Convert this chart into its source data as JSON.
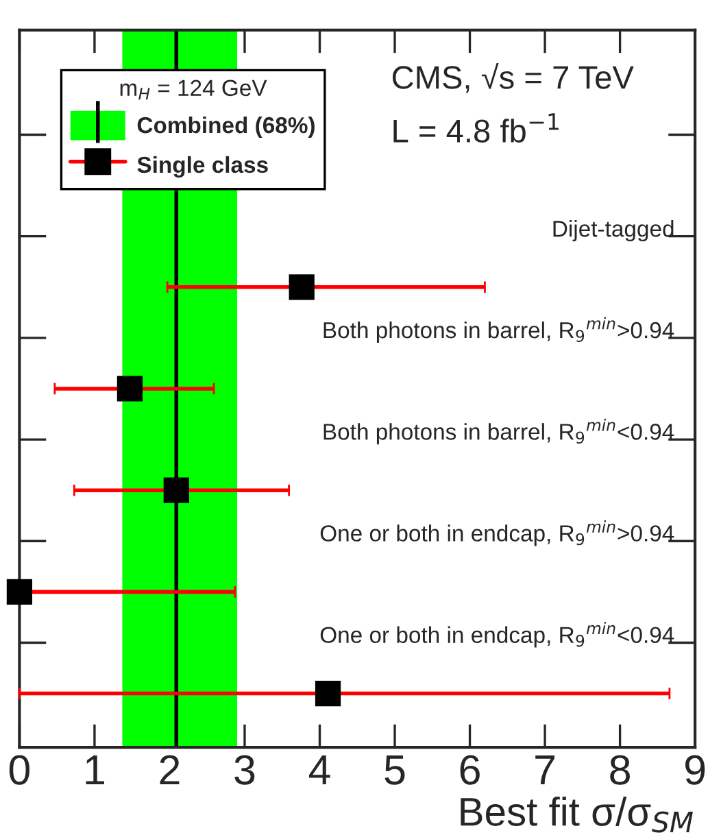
{
  "chart_data": {
    "type": "scatter",
    "orientation": "horizontal",
    "categories": [
      "Dijet-tagged",
      "Both photons in barrel, R$_{9}$$^{min}$>0.94",
      "Both photons in barrel, R$_{9}$$^{min}$<0.94",
      "One or both in endcap, R$_{9}$$^{min}$>0.94",
      "One or both in endcap, R$_{9}$$^{min}$<0.94"
    ],
    "series": [
      {
        "name": "Single class",
        "color": "#000000",
        "values": [
          3.76,
          1.47,
          2.09,
          0.0,
          4.11
        ],
        "errors": [
          [
            1.97,
            6.2
          ],
          [
            0.47,
            2.59
          ],
          [
            0.73,
            3.59
          ],
          [
            0.0,
            2.87
          ],
          [
            0.0,
            8.66
          ]
        ]
      }
    ],
    "ref_lines": [
      {
        "axis": "x",
        "value": 2.09,
        "color": "#000000"
      }
    ],
    "bands": [
      {
        "axis": "x",
        "from": 1.37,
        "to": 2.9,
        "label": "Combined (68%)",
        "color": "#00ff00"
      }
    ],
    "xlim": [
      0,
      9
    ],
    "xticks": [
      0,
      1,
      2,
      3,
      4,
      5,
      6,
      7,
      8,
      9
    ],
    "xlabel": "Best fit σ/σ$_{SM}$",
    "legend_title": "m$_{H}$ = 124 GeV",
    "legend": "top left",
    "marker": "square",
    "tick_labels": "x",
    "annotations": [
      "CMS, √s = 7 TeV",
      "L = 4.8 fb$^{−1}$"
    ]
  }
}
